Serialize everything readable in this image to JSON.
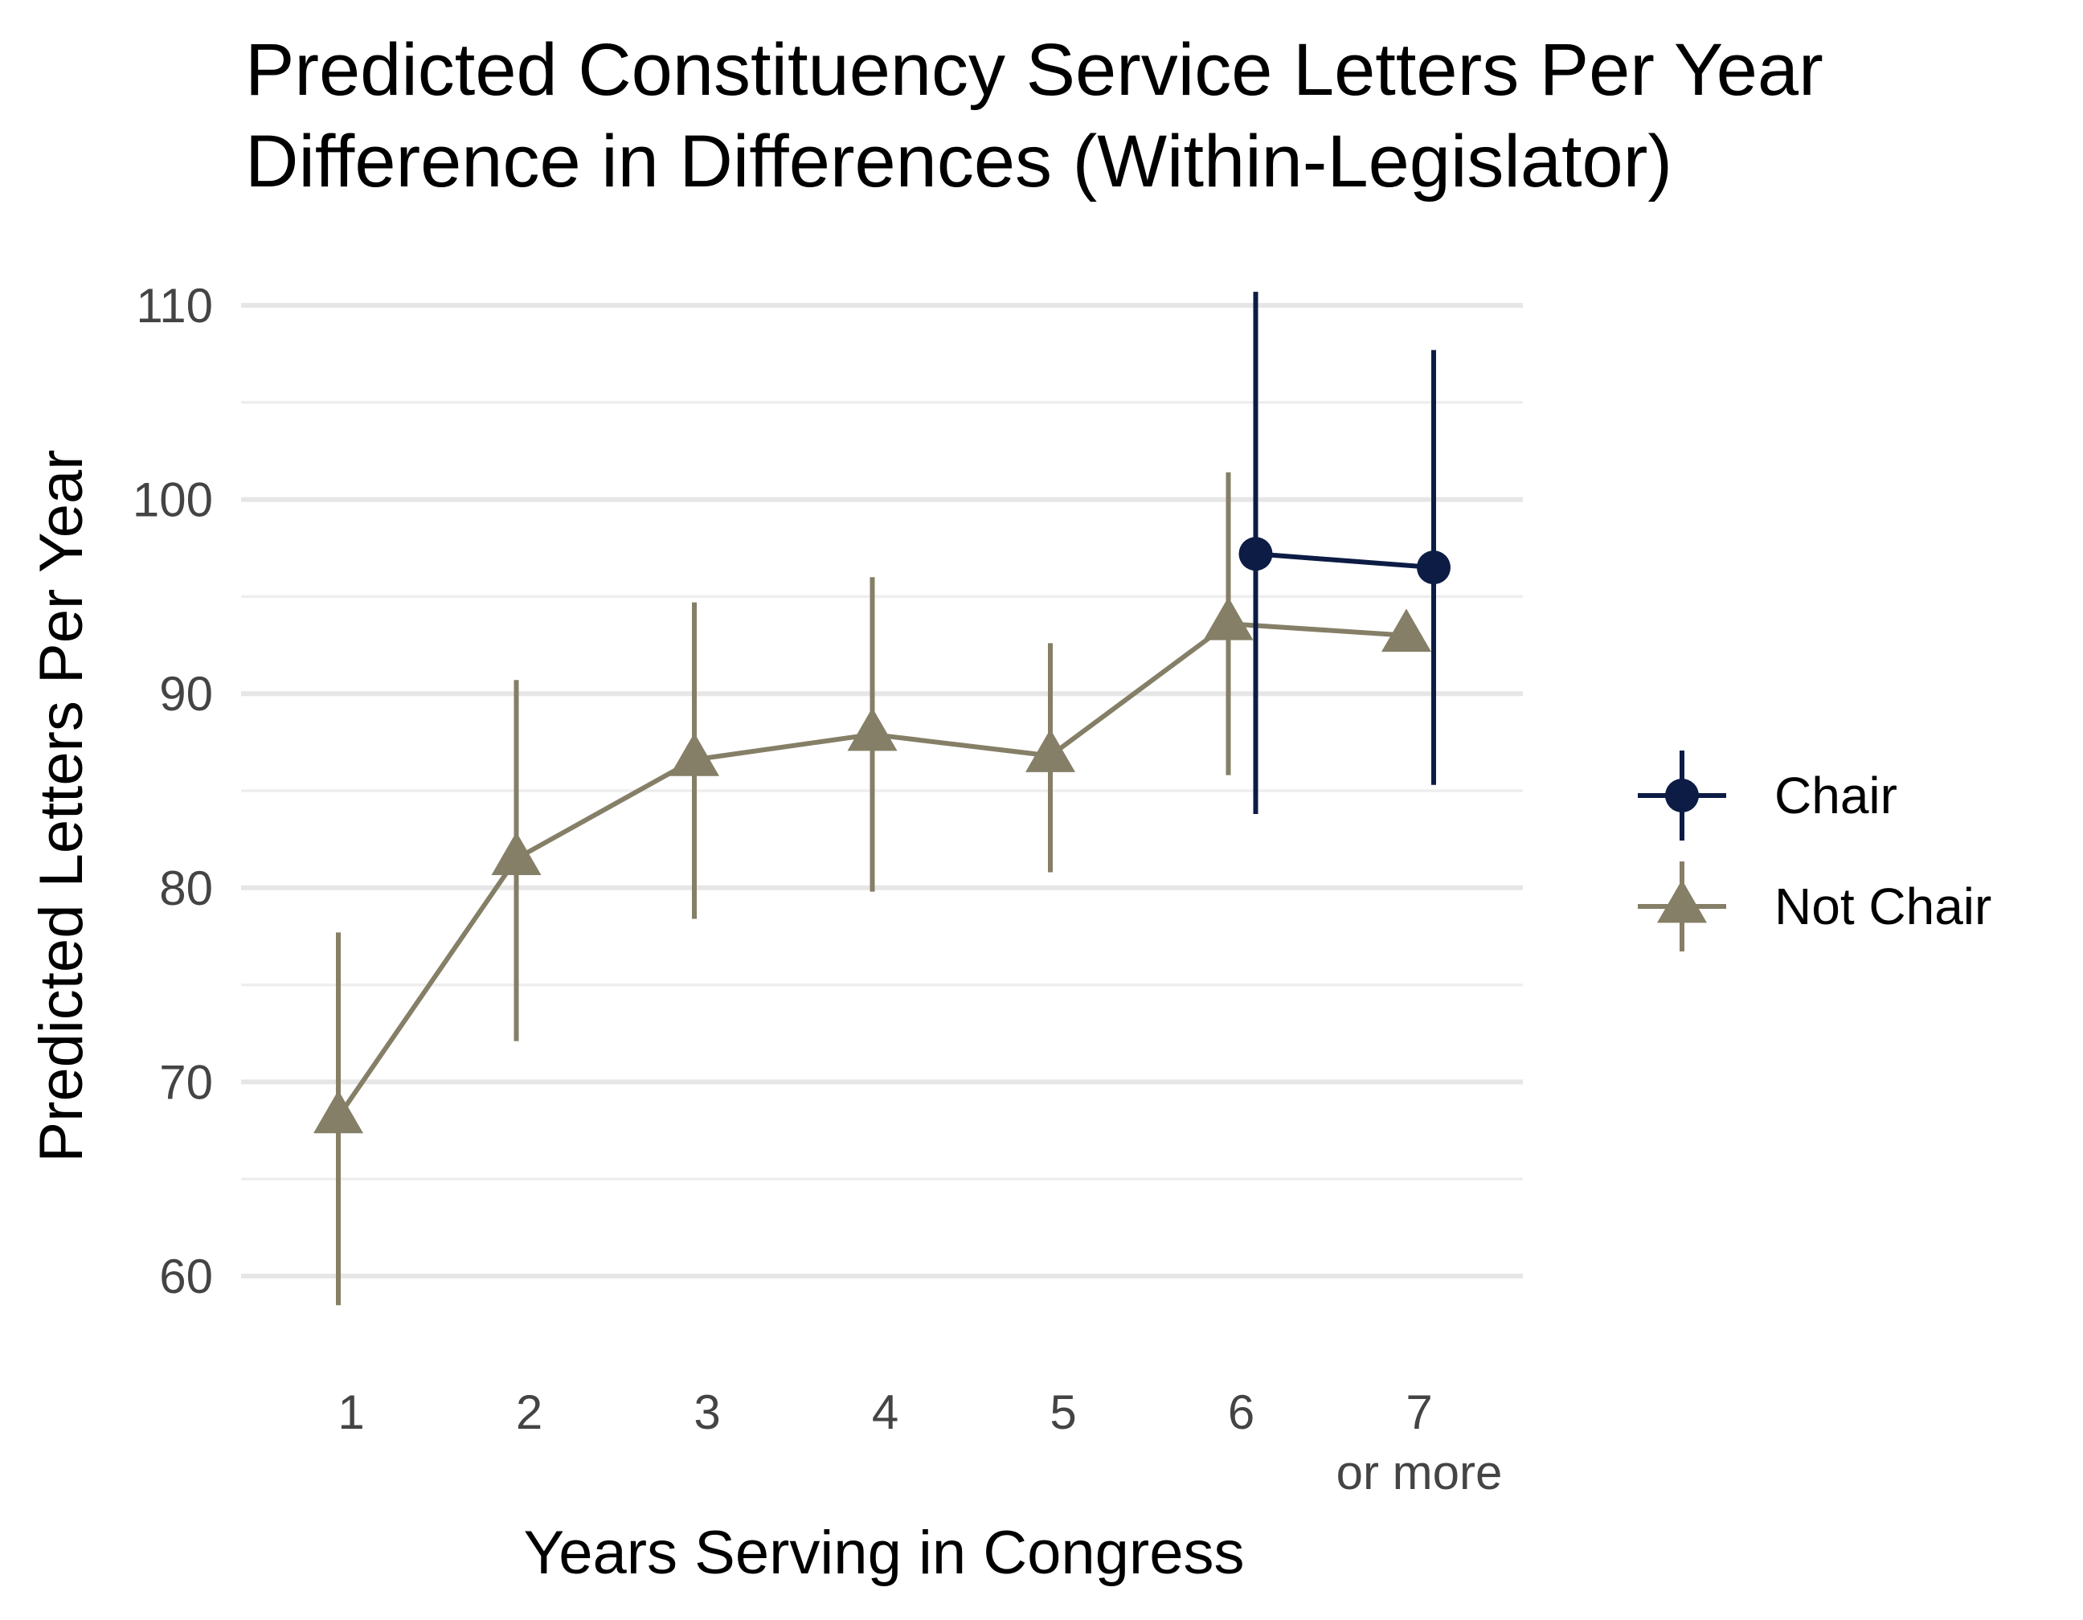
{
  "chart_data": {
    "type": "line",
    "title_lines": [
      "Predicted Constituency Service Letters Per Year",
      "Difference in Differences (Within-Legislator)"
    ],
    "xlabel": "Years Serving in Congress",
    "ylabel": "Predicted Letters Per Year",
    "categories": [
      "1",
      "2",
      "3",
      "4",
      "5",
      "6",
      "7"
    ],
    "category_sublabels": [
      "",
      "",
      "",
      "",
      "",
      "",
      "or more"
    ],
    "y_ticks": [
      60,
      70,
      80,
      90,
      100,
      110
    ],
    "ylim": [
      55.5,
      111.5
    ],
    "grid": true,
    "legend_position": "right",
    "series": [
      {
        "name": "Chair",
        "marker": "circle",
        "color": "#0c1c44",
        "points": [
          {
            "category": "6",
            "y": 97.2,
            "lower": 83.8,
            "upper": 110.7
          },
          {
            "category": "7",
            "y": 96.5,
            "lower": 85.3,
            "upper": 107.7
          }
        ]
      },
      {
        "name": "Not Chair",
        "marker": "triangle",
        "color": "#857f67",
        "points": [
          {
            "category": "1",
            "y": 68.2,
            "lower": 58.5,
            "upper": 77.7
          },
          {
            "category": "2",
            "y": 81.5,
            "lower": 72.1,
            "upper": 90.7
          },
          {
            "category": "3",
            "y": 86.6,
            "lower": 78.4,
            "upper": 94.7
          },
          {
            "category": "4",
            "y": 87.9,
            "lower": 79.8,
            "upper": 96.0
          },
          {
            "category": "5",
            "y": 86.8,
            "lower": 80.8,
            "upper": 92.6
          },
          {
            "category": "6",
            "y": 93.6,
            "lower": 85.8,
            "upper": 101.4
          },
          {
            "category": "7",
            "y": 93.0,
            "lower": 93.0,
            "upper": 93.0
          }
        ]
      }
    ]
  }
}
